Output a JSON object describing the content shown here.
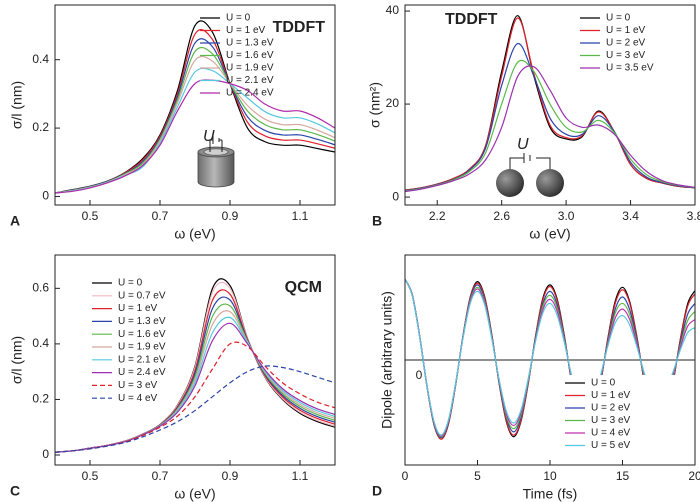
{
  "chart_data": [
    {
      "type": "line",
      "panel_label": "A",
      "title": "TDDFT",
      "inset_label": "U",
      "xlabel": "ω (eV)",
      "ylabel": "σ/l (nm)",
      "xlim": [
        0.4,
        1.2
      ],
      "ylim": [
        -0.025,
        0.56
      ],
      "xticks": [
        0.5,
        0.7,
        0.9,
        1.1
      ],
      "yticks": [
        0,
        0.2,
        0.4
      ],
      "legend": "upper right",
      "x": [
        0.4,
        0.45,
        0.5,
        0.55,
        0.6,
        0.65,
        0.7,
        0.75,
        0.8,
        0.85,
        0.9,
        0.95,
        1.0,
        1.05,
        1.1,
        1.15,
        1.2
      ],
      "series": [
        {
          "name": "U = 0",
          "color": "#000000",
          "values": [
            0.01,
            0.02,
            0.03,
            0.045,
            0.07,
            0.11,
            0.18,
            0.31,
            0.5,
            0.48,
            0.33,
            0.2,
            0.16,
            0.15,
            0.15,
            0.14,
            0.13
          ]
        },
        {
          "name": "U = 1 eV",
          "color": "#e0202a",
          "values": [
            0.01,
            0.019,
            0.029,
            0.044,
            0.069,
            0.106,
            0.176,
            0.301,
            0.475,
            0.459,
            0.33,
            0.217,
            0.177,
            0.165,
            0.165,
            0.154,
            0.141
          ]
        },
        {
          "name": "U = 1.3 eV",
          "color": "#2a44a8",
          "values": [
            0.01,
            0.019,
            0.029,
            0.044,
            0.067,
            0.101,
            0.171,
            0.292,
            0.449,
            0.438,
            0.33,
            0.233,
            0.193,
            0.18,
            0.18,
            0.167,
            0.151
          ]
        },
        {
          "name": "U = 1.6 eV",
          "color": "#5cb848",
          "values": [
            0.01,
            0.018,
            0.028,
            0.043,
            0.066,
            0.097,
            0.167,
            0.283,
            0.424,
            0.417,
            0.33,
            0.25,
            0.21,
            0.195,
            0.195,
            0.181,
            0.162
          ]
        },
        {
          "name": "U = 1.9 eV",
          "color": "#d4a9a0",
          "values": [
            0.01,
            0.017,
            0.027,
            0.042,
            0.064,
            0.092,
            0.162,
            0.274,
            0.398,
            0.396,
            0.33,
            0.266,
            0.226,
            0.21,
            0.21,
            0.194,
            0.172
          ]
        },
        {
          "name": "U = 2.1 eV",
          "color": "#55c8e0",
          "values": [
            0.01,
            0.016,
            0.026,
            0.041,
            0.062,
            0.086,
            0.156,
            0.262,
            0.364,
            0.368,
            0.33,
            0.288,
            0.248,
            0.23,
            0.23,
            0.212,
            0.186
          ]
        },
        {
          "name": "U = 2.4 eV",
          "color": "#b02aa8",
          "values": [
            0.01,
            0.015,
            0.025,
            0.04,
            0.06,
            0.09,
            0.15,
            0.25,
            0.33,
            0.34,
            0.33,
            0.31,
            0.27,
            0.25,
            0.25,
            0.23,
            0.2
          ]
        }
      ]
    },
    {
      "type": "line",
      "panel_label": "B",
      "title": "TDDFT",
      "inset_label": "U",
      "xlabel": "ω (eV)",
      "ylabel": "σ (nm²)",
      "xlim": [
        2.0,
        3.8
      ],
      "ylim": [
        -1.7,
        41.3
      ],
      "xticks": [
        2.2,
        2.6,
        {
          "value": 3,
          "label": "3.0"
        },
        3.4,
        3.8
      ],
      "yticks": [
        0,
        20,
        40
      ],
      "legend": "upper right",
      "x": [
        2.0,
        2.1,
        2.2,
        2.3,
        2.4,
        2.5,
        2.6,
        2.7,
        2.8,
        2.9,
        3.0,
        3.1,
        3.2,
        3.3,
        3.4,
        3.5,
        3.6,
        3.7,
        3.8
      ],
      "series": [
        {
          "name": "U = 0",
          "color": "#000000",
          "values": [
            1.5,
            2,
            2.8,
            4,
            6,
            11,
            27,
            39,
            26,
            15,
            12.5,
            13,
            18.5,
            14,
            7,
            4,
            3,
            2.3,
            2
          ]
        },
        {
          "name": "U = 1 eV",
          "color": "#e0202a",
          "values": [
            1.5,
            2,
            2.8,
            4,
            6,
            11,
            26,
            38.5,
            26.5,
            15.5,
            12.8,
            13.2,
            18.3,
            14,
            7,
            4,
            3,
            2.3,
            2
          ]
        },
        {
          "name": "U = 2 eV",
          "color": "#2a44a8",
          "values": [
            1.4,
            1.9,
            2.7,
            3.8,
            5.8,
            10.5,
            24,
            33,
            26,
            17,
            13.5,
            13.5,
            17.5,
            14,
            7.5,
            4.3,
            3.1,
            2.4,
            2
          ]
        },
        {
          "name": "U = 3 eV",
          "color": "#5cb848",
          "values": [
            1.3,
            1.8,
            2.6,
            3.7,
            5.5,
            9.5,
            20,
            29,
            27,
            20,
            15,
            14,
            16.5,
            13.8,
            8.2,
            4.8,
            3.3,
            2.5,
            2.05
          ]
        },
        {
          "name": "U = 3.5 eV",
          "color": "#9b30b0",
          "values": [
            1.2,
            1.7,
            2.5,
            3.5,
            5,
            8,
            15,
            26,
            28,
            23,
            17,
            15,
            15.5,
            13.5,
            9,
            5.5,
            3.5,
            2.6,
            2.1
          ]
        }
      ]
    },
    {
      "type": "line",
      "panel_label": "C",
      "title": "QCM",
      "xlabel": "ω (eV)",
      "ylabel": "σ/l (nm)",
      "xlim": [
        0.4,
        1.2
      ],
      "ylim": [
        -0.036,
        0.72
      ],
      "xticks": [
        0.5,
        0.7,
        0.9,
        1.1
      ],
      "yticks": [
        0,
        0.2,
        0.4,
        0.6
      ],
      "legend": "upper left",
      "x": [
        0.4,
        0.45,
        0.5,
        0.55,
        0.6,
        0.65,
        0.7,
        0.75,
        0.8,
        0.85,
        0.9,
        0.95,
        1.0,
        1.05,
        1.1,
        1.15,
        1.2
      ],
      "series": [
        {
          "name": "U = 0",
          "color": "#000000",
          "values": [
            0.01,
            0.015,
            0.025,
            0.035,
            0.05,
            0.075,
            0.11,
            0.18,
            0.32,
            0.6,
            0.61,
            0.42,
            0.28,
            0.2,
            0.15,
            0.12,
            0.1
          ]
        },
        {
          "name": "U = 0.7 eV",
          "color": "#f2b8c0",
          "values": [
            0.01,
            0.015,
            0.025,
            0.035,
            0.05,
            0.075,
            0.11,
            0.178,
            0.315,
            0.586,
            0.6,
            0.419,
            0.282,
            0.203,
            0.154,
            0.124,
            0.104
          ]
        },
        {
          "name": "U = 1 eV",
          "color": "#e0202a",
          "values": [
            0.01,
            0.015,
            0.025,
            0.035,
            0.05,
            0.074,
            0.109,
            0.174,
            0.304,
            0.557,
            0.579,
            0.416,
            0.286,
            0.209,
            0.161,
            0.131,
            0.111
          ]
        },
        {
          "name": "U = 1.3 eV",
          "color": "#2a44a8",
          "values": [
            0.01,
            0.015,
            0.025,
            0.035,
            0.049,
            0.074,
            0.108,
            0.17,
            0.293,
            0.528,
            0.558,
            0.413,
            0.29,
            0.215,
            0.168,
            0.138,
            0.118
          ]
        },
        {
          "name": "U = 1.6 eV",
          "color": "#5cb848",
          "values": [
            0.01,
            0.015,
            0.024,
            0.034,
            0.049,
            0.073,
            0.107,
            0.166,
            0.282,
            0.499,
            0.537,
            0.41,
            0.294,
            0.221,
            0.175,
            0.145,
            0.125
          ]
        },
        {
          "name": "U = 1.9 eV",
          "color": "#d4a9a0",
          "values": [
            0.01,
            0.015,
            0.024,
            0.034,
            0.049,
            0.073,
            0.106,
            0.162,
            0.271,
            0.47,
            0.516,
            0.407,
            0.298,
            0.227,
            0.182,
            0.152,
            0.132
          ]
        },
        {
          "name": "U = 2.1 eV",
          "color": "#55c8e0",
          "values": [
            0.01,
            0.015,
            0.024,
            0.034,
            0.048,
            0.072,
            0.105,
            0.158,
            0.26,
            0.44,
            0.495,
            0.404,
            0.302,
            0.233,
            0.189,
            0.159,
            0.139
          ]
        },
        {
          "name": "U = 2.4 eV",
          "color": "#9b30b0",
          "values": [
            0.01,
            0.015,
            0.024,
            0.034,
            0.048,
            0.072,
            0.104,
            0.154,
            0.249,
            0.412,
            0.474,
            0.4,
            0.306,
            0.239,
            0.196,
            0.166,
            0.146
          ]
        },
        {
          "name": "U = 3 eV",
          "color": "#e0202a",
          "dash": true,
          "values": [
            0.01,
            0.015,
            0.023,
            0.033,
            0.047,
            0.07,
            0.1,
            0.14,
            0.21,
            0.31,
            0.4,
            0.39,
            0.32,
            0.26,
            0.22,
            0.19,
            0.17
          ]
        },
        {
          "name": "U = 4 eV",
          "color": "#2a44a8",
          "dash": true,
          "values": [
            0.01,
            0.015,
            0.022,
            0.032,
            0.045,
            0.065,
            0.09,
            0.12,
            0.16,
            0.21,
            0.26,
            0.3,
            0.32,
            0.315,
            0.3,
            0.28,
            0.26
          ]
        }
      ]
    },
    {
      "type": "line",
      "panel_label": "D",
      "xlabel": "Time (fs)",
      "ylabel": "Dipole (arbitrary units)",
      "xlim": [
        0,
        20
      ],
      "ylim": [
        -1.3,
        1.3
      ],
      "xticks": [
        0,
        5,
        10,
        15,
        20
      ],
      "yticks": [
        0
      ],
      "zero_line": true,
      "legend": "lower right",
      "x": [
        0,
        0.5,
        1,
        1.5,
        2,
        2.5,
        3,
        3.5,
        4,
        4.5,
        5,
        5.5,
        6,
        6.5,
        7,
        7.5,
        8,
        8.5,
        9,
        9.5,
        10,
        10.5,
        11,
        11.5,
        12,
        12.5,
        13,
        13.5,
        14,
        14.5,
        15,
        15.5,
        16,
        16.5,
        17,
        17.5,
        18,
        18.5,
        19,
        19.5,
        20
      ],
      "series": [
        {
          "name": "U = 0",
          "color": "#000000",
          "values": [
            1,
            0.81,
            0.31,
            -0.31,
            -0.8,
            -0.98,
            -0.79,
            -0.3,
            0.3,
            0.78,
            0.97,
            0.78,
            0.3,
            -0.3,
            -0.77,
            -0.95,
            -0.76,
            -0.29,
            0.29,
            0.76,
            0.93,
            0.75,
            0.29,
            -0.29,
            -0.74,
            -0.91,
            -0.74,
            -0.28,
            0.28,
            0.73,
            0.9,
            0.72,
            0.28,
            -0.27,
            -0.71,
            -0.88,
            -0.71,
            -0.27,
            0.27,
            0.7,
            0.86
          ]
        },
        {
          "name": "U = 1 eV",
          "color": "#e0202a",
          "values": [
            1,
            0.81,
            0.31,
            -0.31,
            -0.8,
            -0.98,
            -0.79,
            -0.3,
            0.3,
            0.78,
            0.95,
            0.77,
            0.29,
            -0.29,
            -0.76,
            -0.93,
            -0.75,
            -0.29,
            0.29,
            0.74,
            0.91,
            0.73,
            0.28,
            -0.28,
            -0.72,
            -0.89,
            -0.72,
            -0.27,
            0.27,
            0.7,
            0.87,
            0.7,
            0.27,
            -0.26,
            -0.69,
            -0.84,
            -0.68,
            -0.26,
            0.26,
            0.67,
            0.82
          ]
        },
        {
          "name": "U = 2 eV",
          "color": "#2a44a8",
          "values": [
            1,
            0.8,
            0.31,
            -0.3,
            -0.79,
            -0.96,
            -0.77,
            -0.29,
            0.29,
            0.76,
            0.93,
            0.74,
            0.28,
            -0.28,
            -0.72,
            -0.89,
            -0.71,
            -0.27,
            0.27,
            0.69,
            0.85,
            0.68,
            0.26,
            -0.26,
            -0.66,
            -0.81,
            -0.65,
            -0.25,
            0.24,
            0.63,
            0.78,
            0.62,
            0.24,
            -0.23,
            -0.6,
            -0.74,
            -0.59,
            -0.22,
            0.22,
            0.57,
            0.7
          ]
        },
        {
          "name": "U = 3 eV",
          "color": "#5cb848",
          "values": [
            1,
            0.8,
            0.3,
            -0.3,
            -0.78,
            -0.95,
            -0.76,
            -0.29,
            0.29,
            0.74,
            0.9,
            0.72,
            0.27,
            -0.27,
            -0.7,
            -0.85,
            -0.68,
            -0.26,
            0.25,
            0.66,
            0.8,
            0.64,
            0.24,
            -0.24,
            -0.62,
            -0.75,
            -0.6,
            -0.23,
            0.22,
            0.58,
            0.7,
            0.56,
            0.21,
            -0.21,
            -0.53,
            -0.65,
            -0.52,
            -0.2,
            0.19,
            0.49,
            0.6
          ]
        },
        {
          "name": "U = 4 eV",
          "color": "#c030b0",
          "values": [
            1,
            0.8,
            0.3,
            -0.3,
            -0.77,
            -0.94,
            -0.75,
            -0.28,
            0.28,
            0.72,
            0.88,
            0.7,
            0.26,
            -0.26,
            -0.67,
            -0.81,
            -0.65,
            -0.24,
            0.24,
            0.62,
            0.75,
            0.6,
            0.22,
            -0.22,
            -0.57,
            -0.69,
            -0.55,
            -0.21,
            0.2,
            0.52,
            0.63,
            0.5,
            0.19,
            -0.18,
            -0.47,
            -0.56,
            -0.45,
            -0.17,
            0.16,
            0.42,
            0.5
          ]
        },
        {
          "name": "U = 5 eV",
          "color": "#55c8e0",
          "values": [
            1,
            0.8,
            0.3,
            -0.3,
            -0.76,
            -0.93,
            -0.74,
            -0.28,
            0.27,
            0.7,
            0.85,
            0.68,
            0.25,
            -0.25,
            -0.64,
            -0.78,
            -0.62,
            -0.23,
            0.23,
            0.58,
            0.7,
            0.55,
            0.21,
            -0.2,
            -0.52,
            -0.63,
            -0.49,
            -0.18,
            0.18,
            0.46,
            0.55,
            0.43,
            0.16,
            -0.16,
            -0.4,
            -0.48,
            -0.37,
            -0.14,
            0.13,
            0.34,
            0.4
          ]
        }
      ]
    }
  ]
}
